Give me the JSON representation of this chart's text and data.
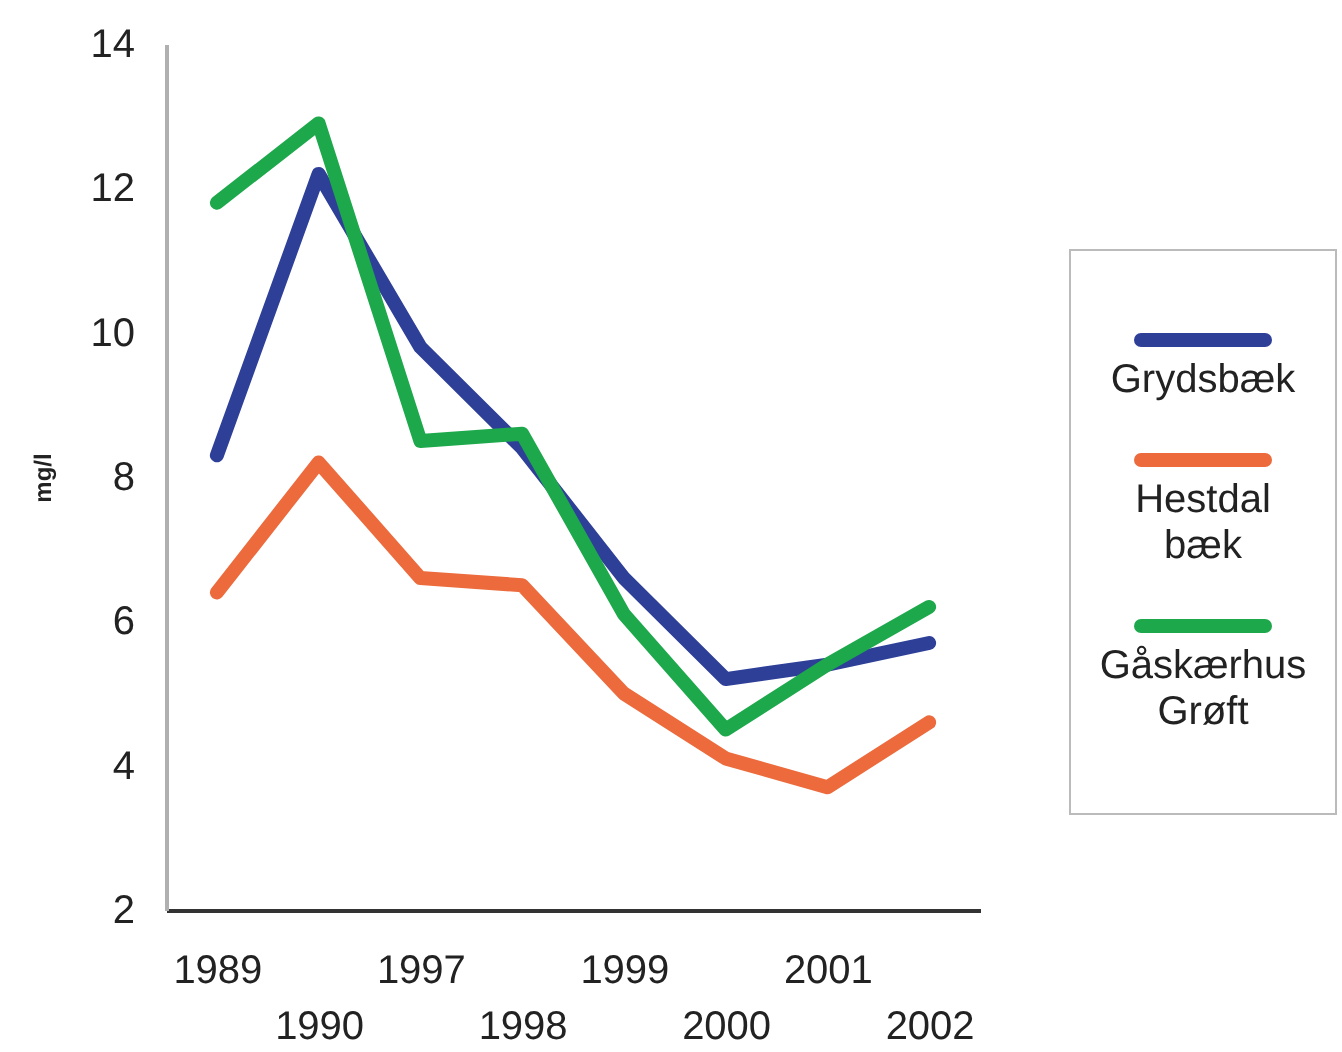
{
  "chart_data": {
    "type": "line",
    "ylabel": "mg/l",
    "categories": [
      "1989",
      "1990",
      "1997",
      "1998",
      "1999",
      "2000",
      "2001",
      "2002"
    ],
    "ylim": [
      2,
      14
    ],
    "yticks": [
      2,
      4,
      6,
      8,
      10,
      12,
      14
    ],
    "legend": "right",
    "line_style": "solid",
    "series": [
      {
        "name": "Grydsbæk",
        "color": "#2e3f98",
        "values": [
          8.3,
          12.2,
          9.8,
          8.4,
          6.6,
          5.2,
          5.4,
          5.7
        ]
      },
      {
        "name": "Hestdal bæk",
        "color": "#ec6a3c",
        "values": [
          6.4,
          8.2,
          6.6,
          6.5,
          5.0,
          4.1,
          3.7,
          4.6
        ]
      },
      {
        "name": "Gåskærhus Grøft",
        "color": "#1ea84c",
        "values": [
          11.8,
          12.9,
          8.5,
          8.6,
          6.1,
          4.5,
          5.4,
          6.2
        ]
      }
    ]
  }
}
